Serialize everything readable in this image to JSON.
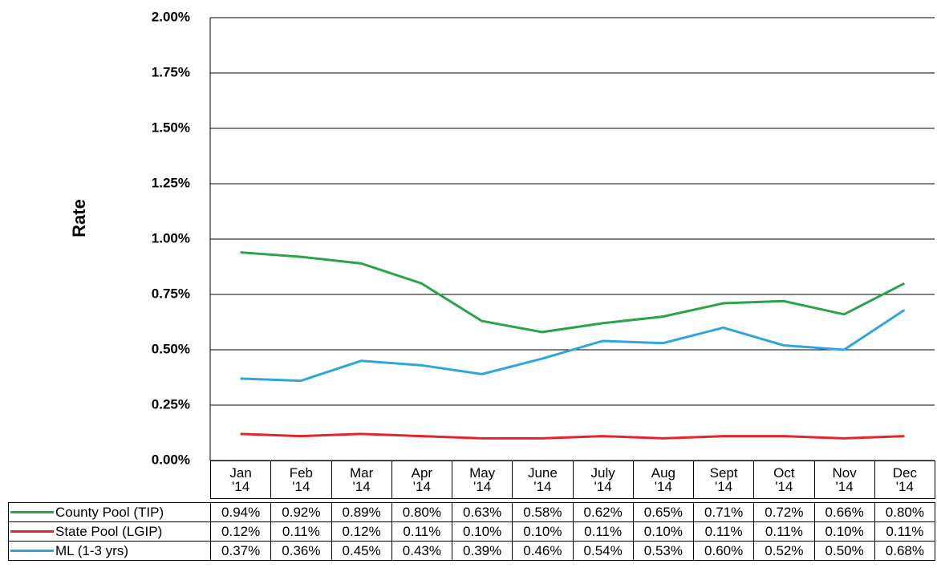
{
  "chart_data": {
    "type": "line",
    "y_label": "Rate",
    "categories": [
      "Jan '14",
      "Feb '14",
      "Mar '14",
      "Apr '14",
      "May '14",
      "June '14",
      "July '14",
      "Aug '14",
      "Sept '14",
      "Oct '14",
      "Nov '14",
      "Dec '14"
    ],
    "ylim": [
      0,
      2
    ],
    "yticks": [
      {
        "value": 0,
        "label": "0.00%"
      },
      {
        "value": 0.25,
        "label": "0.25%"
      },
      {
        "value": 0.5,
        "label": "0.50%"
      },
      {
        "value": 0.75,
        "label": "0.75%"
      },
      {
        "value": 1,
        "label": "1.00%"
      },
      {
        "value": 1.25,
        "label": "1.25%"
      },
      {
        "value": 1.5,
        "label": "1.50%"
      },
      {
        "value": 1.75,
        "label": "1.75%"
      },
      {
        "value": 2,
        "label": "2.00%"
      }
    ],
    "grid": true,
    "series": [
      {
        "name": "County Pool (TIP)",
        "color": "#2ca24b",
        "values": [
          0.94,
          0.92,
          0.89,
          0.8,
          0.63,
          0.58,
          0.62,
          0.65,
          0.71,
          0.72,
          0.66,
          0.8
        ],
        "value_labels": [
          "0.94%",
          "0.92%",
          "0.89%",
          "0.80%",
          "0.63%",
          "0.58%",
          "0.62%",
          "0.65%",
          "0.71%",
          "0.72%",
          "0.66%",
          "0.80%"
        ]
      },
      {
        "name": "State Pool (LGIP)",
        "color": "#e3262b",
        "values": [
          0.12,
          0.11,
          0.12,
          0.11,
          0.1,
          0.1,
          0.11,
          0.1,
          0.11,
          0.11,
          0.1,
          0.11
        ],
        "value_labels": [
          "0.12%",
          "0.11%",
          "0.12%",
          "0.11%",
          "0.10%",
          "0.10%",
          "0.11%",
          "0.10%",
          "0.11%",
          "0.11%",
          "0.10%",
          "0.11%"
        ]
      },
      {
        "name": "ML (1-3 yrs)",
        "color": "#2ea6dc",
        "values": [
          0.37,
          0.36,
          0.45,
          0.43,
          0.39,
          0.46,
          0.54,
          0.53,
          0.6,
          0.52,
          0.5,
          0.68
        ],
        "value_labels": [
          "0.37%",
          "0.36%",
          "0.45%",
          "0.43%",
          "0.39%",
          "0.46%",
          "0.54%",
          "0.53%",
          "0.60%",
          "0.52%",
          "0.50%",
          "0.68%"
        ]
      }
    ]
  }
}
